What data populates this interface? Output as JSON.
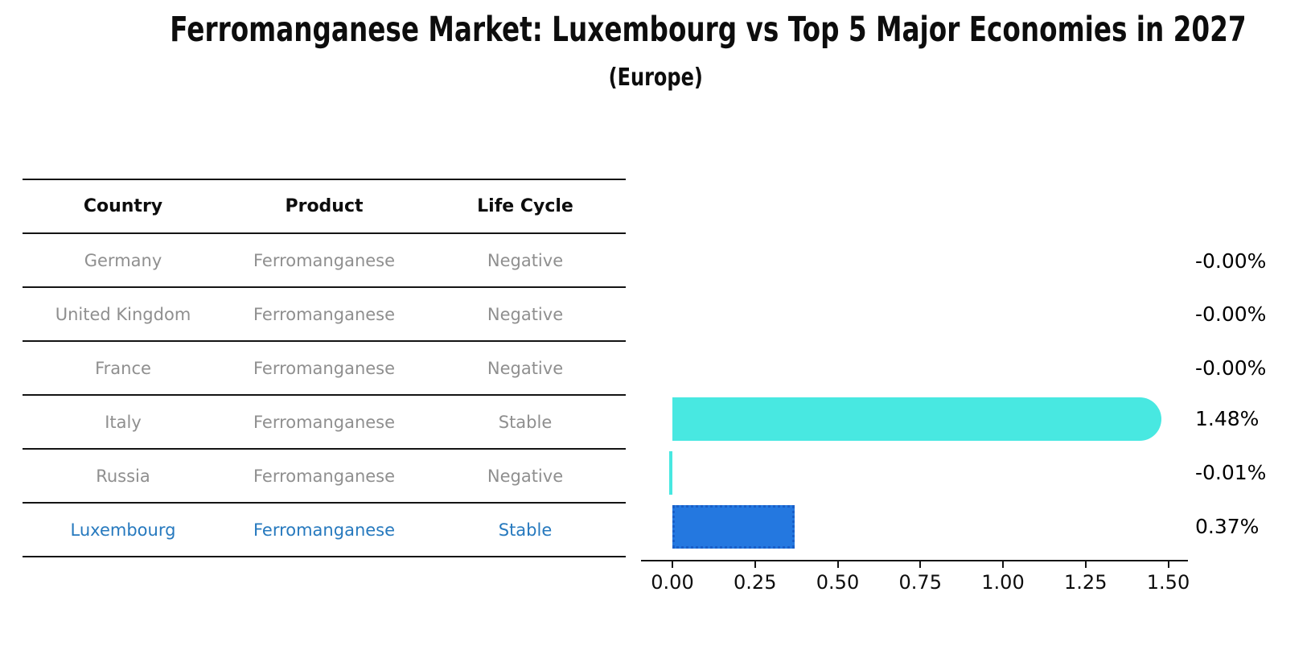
{
  "title": "Ferromanganese Market: Luxembourg vs Top 5 Major Economies in 2027",
  "subtitle": "(Europe)",
  "table": {
    "headers": [
      "Country",
      "Product",
      "Life Cycle"
    ],
    "rows": [
      {
        "country": "Germany",
        "product": "Ferromanganese",
        "life_cycle": "Negative",
        "highlight": false
      },
      {
        "country": "United Kingdom",
        "product": "Ferromanganese",
        "life_cycle": "Negative",
        "highlight": false
      },
      {
        "country": "France",
        "product": "Ferromanganese",
        "life_cycle": "Negative",
        "highlight": false
      },
      {
        "country": "Italy",
        "product": "Ferromanganese",
        "life_cycle": "Stable",
        "highlight": false
      },
      {
        "country": "Russia",
        "product": "Ferromanganese",
        "life_cycle": "Negative",
        "highlight": false
      },
      {
        "country": "Luxembourg",
        "product": "Ferromanganese",
        "life_cycle": "Stable",
        "highlight": true
      }
    ]
  },
  "chart_data": {
    "type": "bar",
    "orientation": "horizontal",
    "title": "Ferromanganese Market: Luxembourg vs Top 5 Major Economies in 2027",
    "subtitle": "(Europe)",
    "categories": [
      "Germany",
      "United Kingdom",
      "France",
      "Italy",
      "Russia",
      "Luxembourg"
    ],
    "values": [
      -0.0,
      -0.0,
      -0.0,
      1.48,
      -0.01,
      0.37
    ],
    "value_labels": [
      "-0.00%",
      "-0.00%",
      "-0.00%",
      "1.48%",
      "-0.01%",
      "0.37%"
    ],
    "xlabel": "",
    "ylabel": "",
    "xlim": [
      0,
      1.5
    ],
    "xticks": [
      0,
      0.25,
      0.5,
      0.75,
      1,
      1.25,
      1.5
    ],
    "xtick_labels": [
      "0.00",
      "0.25",
      "0.50",
      "0.75",
      "1.00",
      "1.25",
      "1.50"
    ],
    "grid": false,
    "legend": false,
    "bar_styles": [
      {
        "color": "#48e8e1",
        "shape": "square"
      },
      {
        "color": "#48e8e1",
        "shape": "square"
      },
      {
        "color": "#48e8e1",
        "shape": "square"
      },
      {
        "color": "#48e8e1",
        "shape": "rounded-right"
      },
      {
        "color": "#48e8e1",
        "shape": "square"
      },
      {
        "color": "#2478e0",
        "shape": "dotted-border",
        "border_color": "#1a5fc8"
      }
    ]
  },
  "colors": {
    "bar_cyan": "#48e8e1",
    "bar_blue": "#2478e0",
    "bar_blue_border": "#1a5fc8",
    "highlight_text": "#2679be",
    "muted_text": "#8f8f8f",
    "axis_text": "#000000",
    "line": "#141414",
    "background": "#ffffff"
  }
}
